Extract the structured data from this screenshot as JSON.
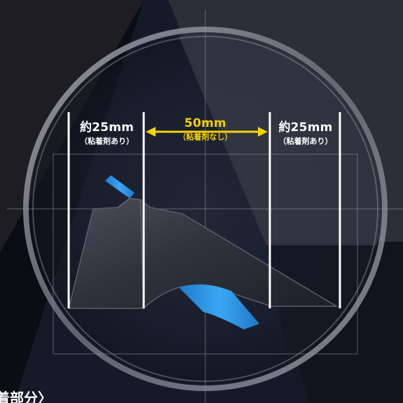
{
  "zones": {
    "left": {
      "width_label": "約25mm",
      "adhesive_note": "（粘着剤あり）"
    },
    "center": {
      "width_label": "50mm",
      "adhesive_note": "（粘着剤なし）"
    },
    "right": {
      "width_label": "約25mm",
      "adhesive_note": "（粘着剤あり）"
    }
  },
  "caption": "着部分〉",
  "colors": {
    "highlight": "#f4d300",
    "guide_lines": "#ffffff",
    "tape_blue": "#2a9be8",
    "background": "#0b0d14"
  }
}
